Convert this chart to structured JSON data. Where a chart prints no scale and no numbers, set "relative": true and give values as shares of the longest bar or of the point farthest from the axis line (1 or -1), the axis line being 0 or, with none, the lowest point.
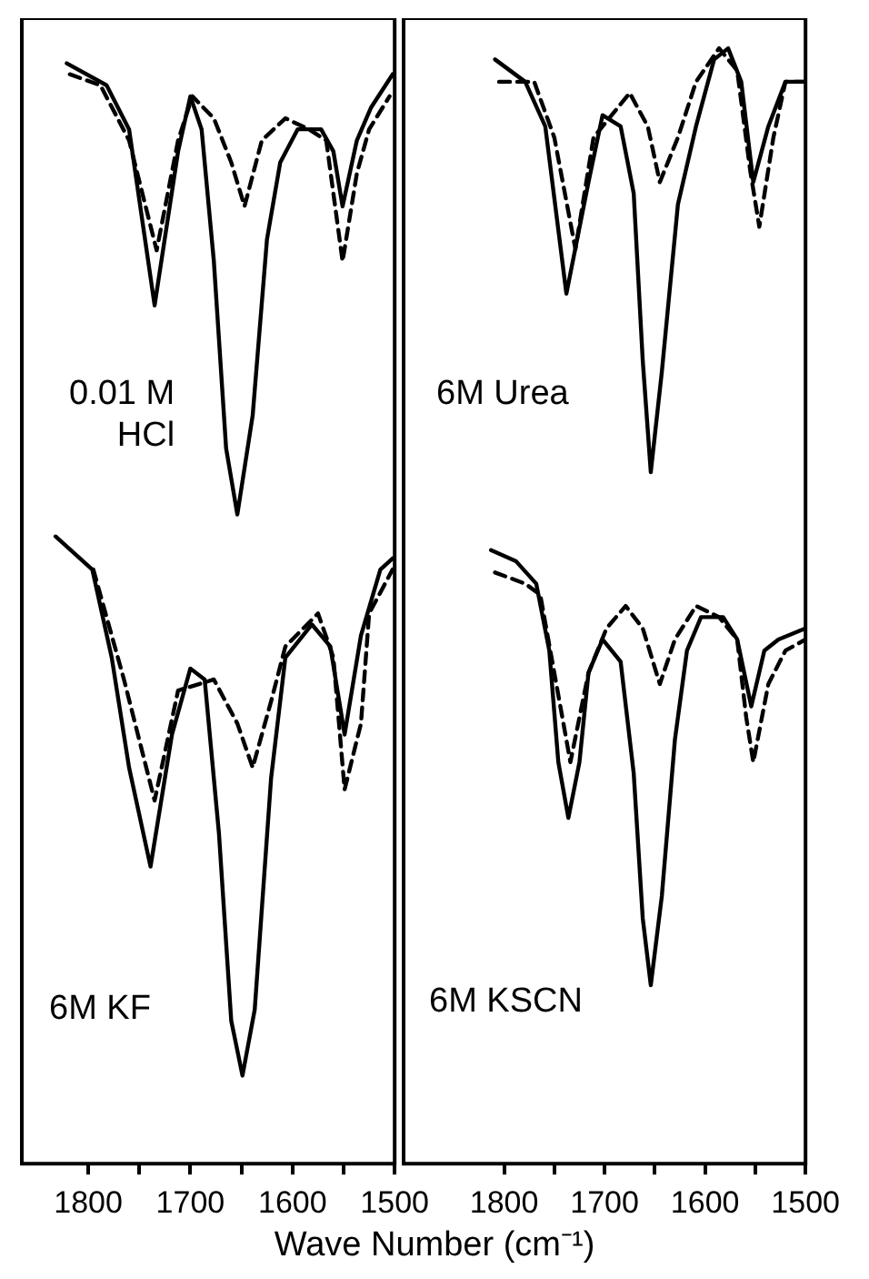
{
  "chart_data": [
    {
      "type": "line",
      "relative": true,
      "xlim": [
        1865,
        1500
      ],
      "xticks": [
        1800,
        {
          "value": 1750,
          "label": null
        },
        1700,
        {
          "value": 1650,
          "label": null
        },
        1600,
        {
          "value": 1550,
          "label": null
        },
        1500
      ],
      "tick_labels": "x",
      "marker": "none",
      "legend": false,
      "grid": false,
      "xlabel": "Wave Number (cm⁻¹)",
      "annotations": [
        "0.01 M\nHCl",
        "6M KF"
      ],
      "series": [
        {
          "color": "#000000",
          "line_style": "solid",
          "x": [
            1821,
            1782,
            1760,
            1735,
            1712,
            1700,
            1689,
            1677,
            1665,
            1654,
            1639,
            1625,
            1612,
            1595,
            1572,
            1560,
            1551,
            1537,
            1523,
            1502
          ],
          "values": [
            1.0,
            0.98,
            0.94,
            0.78,
            0.92,
            0.97,
            0.94,
            0.82,
            0.65,
            0.59,
            0.68,
            0.84,
            0.91,
            0.94,
            0.94,
            0.92,
            0.87,
            0.93,
            0.96,
            0.99
          ]
        },
        {
          "color": "#000000",
          "line_style": "dashed",
          "x": [
            1818,
            1788,
            1760,
            1733,
            1712,
            1698,
            1677,
            1660,
            1647,
            1630,
            1607,
            1584,
            1567,
            1551,
            1537,
            1525,
            1505
          ],
          "values": [
            0.99,
            0.98,
            0.93,
            0.83,
            0.93,
            0.97,
            0.95,
            0.91,
            0.87,
            0.93,
            0.95,
            0.94,
            0.93,
            0.82,
            0.9,
            0.94,
            0.97
          ]
        },
        {
          "color": "#000000",
          "line_style": "solid",
          "x": [
            1832,
            1796,
            1777,
            1760,
            1739,
            1718,
            1700,
            1686,
            1672,
            1660,
            1649,
            1637,
            1621,
            1607,
            1581,
            1563,
            1549,
            1533,
            1514,
            1502
          ],
          "values": [
            0.57,
            0.54,
            0.46,
            0.36,
            0.27,
            0.39,
            0.45,
            0.44,
            0.3,
            0.13,
            0.08,
            0.14,
            0.35,
            0.46,
            0.49,
            0.47,
            0.39,
            0.48,
            0.54,
            0.55
          ]
        },
        {
          "color": "#000000",
          "line_style": "dashed",
          "x": [
            1795,
            1765,
            1735,
            1712,
            1677,
            1654,
            1639,
            1621,
            1607,
            1575,
            1560,
            1549,
            1533,
            1525,
            1502
          ],
          "values": [
            0.54,
            0.44,
            0.33,
            0.43,
            0.44,
            0.4,
            0.36,
            0.42,
            0.47,
            0.5,
            0.46,
            0.34,
            0.4,
            0.5,
            0.54
          ]
        }
      ]
    },
    {
      "type": "line",
      "relative": true,
      "xlim": [
        1900,
        1500
      ],
      "xticks": [
        1800,
        {
          "value": 1750,
          "label": null
        },
        1700,
        {
          "value": 1650,
          "label": null
        },
        1600,
        {
          "value": 1550,
          "label": null
        },
        1500
      ],
      "tick_labels": "x",
      "marker": "none",
      "legend": false,
      "grid": false,
      "annotations": [
        "6M Urea",
        "6M KSCN"
      ],
      "series": [
        {
          "color": "#000000",
          "line_style": "solid",
          "x": [
            1809,
            1779,
            1759,
            1738,
            1716,
            1702,
            1684,
            1671,
            1662,
            1654,
            1643,
            1627,
            1609,
            1591,
            1577,
            1564,
            1552,
            1537,
            1520,
            1500
          ],
          "values": [
            0.99,
            0.97,
            0.93,
            0.78,
            0.88,
            0.94,
            0.93,
            0.87,
            0.72,
            0.62,
            0.71,
            0.86,
            0.93,
            0.99,
            1.0,
            0.97,
            0.88,
            0.93,
            0.97,
            0.97
          ]
        },
        {
          "color": "#000000",
          "line_style": "dashed",
          "x": [
            1805,
            1770,
            1750,
            1729,
            1711,
            1693,
            1675,
            1657,
            1645,
            1627,
            1609,
            1586,
            1568,
            1555,
            1546,
            1532,
            1520,
            1500
          ],
          "values": [
            0.97,
            0.97,
            0.92,
            0.82,
            0.92,
            0.94,
            0.96,
            0.93,
            0.88,
            0.92,
            0.97,
            1.0,
            0.98,
            0.89,
            0.84,
            0.92,
            0.97,
            0.97
          ]
        },
        {
          "color": "#000000",
          "line_style": "solid",
          "x": [
            1813,
            1788,
            1768,
            1755,
            1746,
            1736,
            1725,
            1716,
            1702,
            1684,
            1671,
            1662,
            1654,
            1643,
            1630,
            1618,
            1604,
            1582,
            1568,
            1554,
            1541,
            1527,
            1500
          ],
          "values": [
            0.55,
            0.54,
            0.52,
            0.46,
            0.36,
            0.31,
            0.36,
            0.44,
            0.47,
            0.45,
            0.35,
            0.22,
            0.16,
            0.24,
            0.38,
            0.46,
            0.49,
            0.49,
            0.47,
            0.41,
            0.46,
            0.47,
            0.48
          ]
        },
        {
          "color": "#000000",
          "line_style": "dashed",
          "x": [
            1809,
            1779,
            1764,
            1750,
            1734,
            1716,
            1698,
            1679,
            1662,
            1645,
            1630,
            1609,
            1586,
            1568,
            1559,
            1552,
            1537,
            1520,
            1500
          ],
          "values": [
            0.53,
            0.52,
            0.51,
            0.44,
            0.36,
            0.44,
            0.48,
            0.5,
            0.48,
            0.43,
            0.47,
            0.5,
            0.49,
            0.47,
            0.4,
            0.36,
            0.43,
            0.46,
            0.47
          ]
        }
      ]
    }
  ]
}
